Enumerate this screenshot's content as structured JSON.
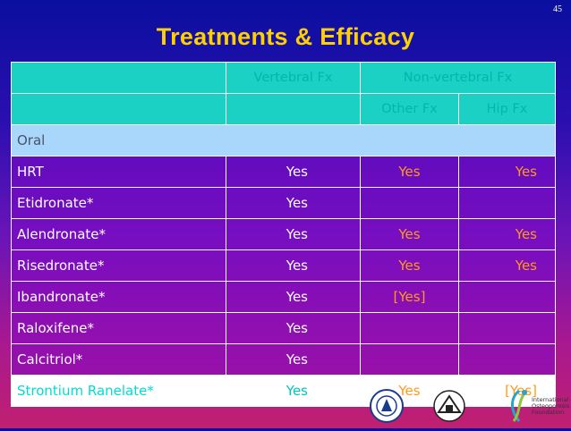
{
  "slide": {
    "page_number": "45",
    "title": "Treatments & Efficacy"
  },
  "table": {
    "header1": {
      "vertebral": "Vertebral Fx",
      "nonvertebral": "Non-vertebral Fx"
    },
    "header2": {
      "other": "Other Fx",
      "hip": "Hip Fx"
    },
    "section": "Oral",
    "rows": [
      {
        "name": "HRT",
        "vertebral": "Yes",
        "other": "Yes",
        "hip": "Yes"
      },
      {
        "name": "Etidronate*",
        "vertebral": "Yes",
        "other": "",
        "hip": ""
      },
      {
        "name": "Alendronate*",
        "vertebral": "Yes",
        "other": "Yes",
        "hip": "Yes"
      },
      {
        "name": "Risedronate*",
        "vertebral": "Yes",
        "other": "Yes",
        "hip": "Yes"
      },
      {
        "name": "Ibandronate*",
        "vertebral": "Yes",
        "other": "[Yes]",
        "hip": ""
      },
      {
        "name": "Raloxifene*",
        "vertebral": "Yes",
        "other": "",
        "hip": ""
      },
      {
        "name": "Calcitriol*",
        "vertebral": "Yes",
        "other": "",
        "hip": ""
      },
      {
        "name": "Strontium Ranelate*",
        "vertebral": "Yes",
        "other": "Yes",
        "hip": "[Yes]"
      }
    ]
  },
  "footer_logos": {
    "icons": [
      "university-seal-icon",
      "association-logo-icon",
      "iof-logo-icon"
    ],
    "iof_line1": "International",
    "iof_line2": "Osteoporosis",
    "iof_line3": "Foundation"
  },
  "colors": {
    "title": "#ffd000",
    "header_bg": "#1ad1c4",
    "section_bg": "#a9d7fb",
    "yes_accent": "#ff9a1a"
  }
}
